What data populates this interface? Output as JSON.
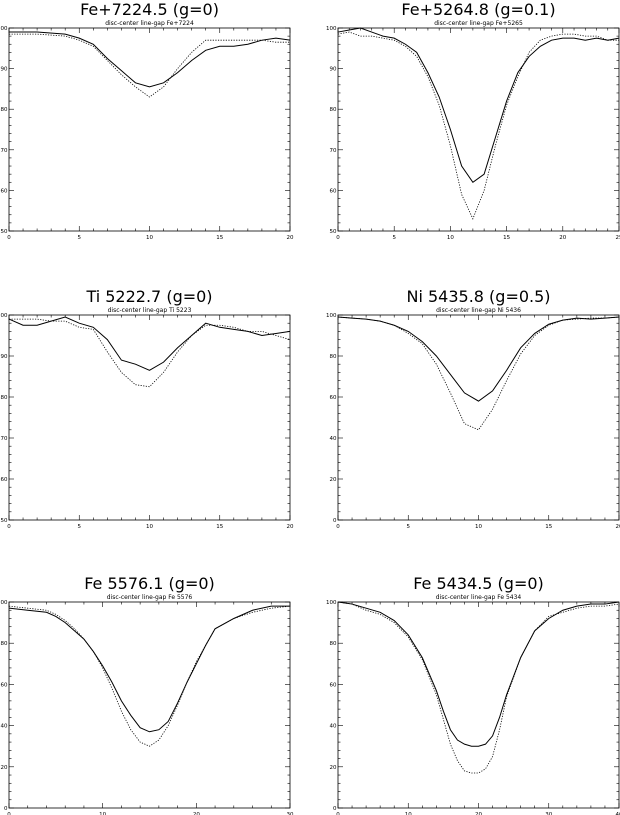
{
  "chart_data": [
    {
      "type": "line",
      "title": "Fe+7224.5 (g=0)",
      "subtitle": "disc-center line-gap Fe+7224",
      "xlim": [
        0,
        20
      ],
      "ylim": [
        50,
        100
      ],
      "xticks": [
        0,
        5,
        10,
        15,
        20
      ],
      "yticks": [
        50,
        60,
        70,
        80,
        90,
        100
      ],
      "series": [
        {
          "style": "solid",
          "x": [
            0,
            2,
            4,
            5,
            6,
            7,
            8,
            9,
            10,
            11,
            12,
            13,
            14,
            15,
            16,
            17,
            18,
            19,
            20
          ],
          "y": [
            99,
            99,
            98.5,
            97.5,
            96,
            92.5,
            89.5,
            86.5,
            85.5,
            86.5,
            89,
            92,
            94.5,
            95.5,
            95.5,
            96,
            97,
            97.5,
            97
          ]
        },
        {
          "style": "dotted",
          "x": [
            0,
            2,
            4,
            5,
            6,
            7,
            8,
            9,
            10,
            11,
            12,
            13,
            14,
            15,
            16,
            17,
            18,
            19,
            20
          ],
          "y": [
            98.5,
            98.5,
            98,
            97,
            95.5,
            92,
            88.5,
            85.5,
            83,
            85.5,
            90,
            94,
            97,
            97,
            97,
            97,
            97,
            96.5,
            96.5
          ]
        }
      ]
    },
    {
      "type": "line",
      "title": "Fe+5264.8 (g=0.1)",
      "subtitle": "disc-center line-gap Fe+5265",
      "xlim": [
        0,
        25
      ],
      "ylim": [
        50,
        100
      ],
      "xticks": [
        0,
        5,
        10,
        15,
        20,
        25
      ],
      "yticks": [
        50,
        60,
        70,
        80,
        90,
        100
      ],
      "series": [
        {
          "style": "solid",
          "x": [
            0,
            1,
            2,
            3,
            4,
            5,
            6,
            7,
            8,
            9,
            10,
            11,
            12,
            13,
            14,
            15,
            16,
            17,
            18,
            19,
            20,
            21,
            22,
            23,
            24,
            25
          ],
          "y": [
            99,
            99.5,
            100,
            99,
            98,
            97.5,
            96,
            94,
            89,
            83,
            75,
            66,
            62,
            64,
            73,
            82,
            89,
            93,
            95.5,
            97,
            97.5,
            97.5,
            97,
            97.5,
            97,
            97.5
          ]
        },
        {
          "style": "dotted",
          "x": [
            0,
            1,
            2,
            3,
            4,
            5,
            6,
            7,
            8,
            9,
            10,
            11,
            12,
            13,
            14,
            15,
            16,
            17,
            18,
            19,
            20,
            21,
            22,
            23,
            24,
            25
          ],
          "y": [
            98.5,
            99,
            98,
            98,
            97.5,
            97,
            95.5,
            93,
            88,
            81,
            71,
            59,
            53,
            60,
            71,
            81,
            88,
            94,
            97,
            98,
            98.5,
            98.5,
            98,
            98,
            97,
            97
          ]
        }
      ]
    },
    {
      "type": "line",
      "title": "Ti 5222.7 (g=0)",
      "subtitle": "disc-center line-gap Ti 5223",
      "xlim": [
        0,
        20
      ],
      "ylim": [
        50,
        100
      ],
      "xticks": [
        0,
        5,
        10,
        15,
        20
      ],
      "yticks": [
        50,
        60,
        70,
        80,
        90,
        100
      ],
      "series": [
        {
          "style": "solid",
          "x": [
            0,
            1,
            2,
            3,
            4,
            5,
            6,
            7,
            8,
            9,
            10,
            11,
            12,
            13,
            14,
            15,
            16,
            17,
            18,
            19,
            20
          ],
          "y": [
            99,
            97.5,
            97.5,
            98.5,
            99.5,
            98,
            97,
            94,
            89,
            88,
            86.5,
            88.5,
            92,
            95,
            98,
            97,
            96.5,
            96,
            95,
            95.5,
            96
          ]
        },
        {
          "style": "dotted",
          "x": [
            0,
            1,
            2,
            3,
            4,
            5,
            6,
            7,
            8,
            9,
            10,
            11,
            12,
            13,
            14,
            15,
            16,
            17,
            18,
            19,
            20
          ],
          "y": [
            99,
            99,
            99,
            98.5,
            98.5,
            97,
            96.5,
            91,
            86,
            83,
            82.5,
            86,
            91,
            95,
            97.5,
            97.5,
            97,
            96,
            96,
            95,
            94
          ]
        }
      ]
    },
    {
      "type": "line",
      "title": "Ni 5435.8 (g=0.5)",
      "subtitle": "disc-center line-gap Ni 5436",
      "xlim": [
        0,
        20
      ],
      "ylim": [
        0,
        100
      ],
      "xticks": [
        0,
        5,
        10,
        15,
        20
      ],
      "yticks": [
        0,
        20,
        40,
        60,
        80,
        100
      ],
      "series": [
        {
          "style": "solid",
          "x": [
            0,
            1,
            2,
            3,
            4,
            5,
            6,
            7,
            8,
            9,
            10,
            11,
            12,
            13,
            14,
            15,
            16,
            17,
            18,
            19,
            20
          ],
          "y": [
            99,
            98.5,
            98,
            97,
            95,
            92,
            87,
            80,
            71,
            62,
            58,
            63,
            73,
            84,
            91,
            95.5,
            97.5,
            98.5,
            98,
            98.5,
            99
          ]
        },
        {
          "style": "dotted",
          "x": [
            0,
            1,
            2,
            3,
            4,
            5,
            6,
            7,
            8,
            9,
            10,
            11,
            12,
            13,
            14,
            15,
            16,
            17,
            18,
            19,
            20
          ],
          "y": [
            99,
            98.5,
            98,
            97,
            95,
            91,
            86,
            76,
            62,
            47,
            44,
            54,
            68,
            81,
            90,
            95,
            97.5,
            98,
            98.5,
            98.5,
            99
          ]
        }
      ]
    },
    {
      "type": "line",
      "title": "Fe 5576.1 (g=0)",
      "subtitle": "disc-center line-gap Fe 5576",
      "xlim": [
        0,
        30
      ],
      "ylim": [
        0,
        100
      ],
      "xticks": [
        0,
        10,
        20,
        30
      ],
      "yticks": [
        0,
        20,
        40,
        60,
        80,
        100
      ],
      "series": [
        {
          "style": "solid",
          "x": [
            0,
            2,
            4,
            5,
            6,
            7,
            8,
            9,
            10,
            11,
            12,
            13,
            14,
            15,
            16,
            17,
            18,
            19,
            20,
            21,
            22,
            24,
            26,
            28,
            30
          ],
          "y": [
            97,
            96,
            95,
            93,
            90,
            86,
            82,
            76,
            69,
            61,
            52,
            45,
            39,
            37,
            38,
            42,
            51,
            61,
            70,
            79,
            87,
            92,
            96,
            98,
            98
          ]
        },
        {
          "style": "dotted",
          "x": [
            0,
            2,
            4,
            5,
            6,
            7,
            8,
            9,
            10,
            11,
            12,
            13,
            14,
            15,
            16,
            17,
            18,
            19,
            20,
            21,
            22,
            24,
            26,
            28,
            30
          ],
          "y": [
            98,
            97,
            96,
            94,
            91,
            87,
            82,
            76,
            68,
            58,
            47,
            38,
            32,
            30,
            33,
            40,
            50,
            61,
            71,
            79,
            87,
            92,
            95,
            97,
            98
          ]
        }
      ]
    },
    {
      "type": "line",
      "title": "Fe 5434.5 (g=0)",
      "subtitle": "disc-center line-gap Fe 5434",
      "xlim": [
        0,
        40
      ],
      "ylim": [
        0,
        100
      ],
      "xticks": [
        0,
        10,
        20,
        30,
        40
      ],
      "yticks": [
        0,
        20,
        40,
        60,
        80,
        100
      ],
      "series": [
        {
          "style": "solid",
          "x": [
            0,
            2,
            4,
            6,
            8,
            10,
            12,
            14,
            15,
            16,
            17,
            18,
            19,
            20,
            21,
            22,
            23,
            24,
            26,
            28,
            30,
            32,
            34,
            36,
            38,
            40
          ],
          "y": [
            100,
            99,
            97,
            95,
            91,
            84,
            73,
            57,
            47,
            38,
            33,
            31,
            30,
            30,
            31,
            35,
            44,
            55,
            73,
            86,
            92,
            96,
            98,
            99,
            99,
            100
          ]
        },
        {
          "style": "dotted",
          "x": [
            0,
            2,
            4,
            6,
            8,
            10,
            12,
            14,
            15,
            16,
            17,
            18,
            19,
            20,
            21,
            22,
            23,
            24,
            26,
            28,
            30,
            32,
            34,
            36,
            38,
            40
          ],
          "y": [
            100,
            99,
            96,
            94,
            90,
            83,
            72,
            55,
            43,
            31,
            23,
            18,
            17,
            17,
            19,
            25,
            38,
            54,
            73,
            86,
            93,
            95,
            97,
            98,
            98,
            99
          ]
        }
      ]
    }
  ]
}
